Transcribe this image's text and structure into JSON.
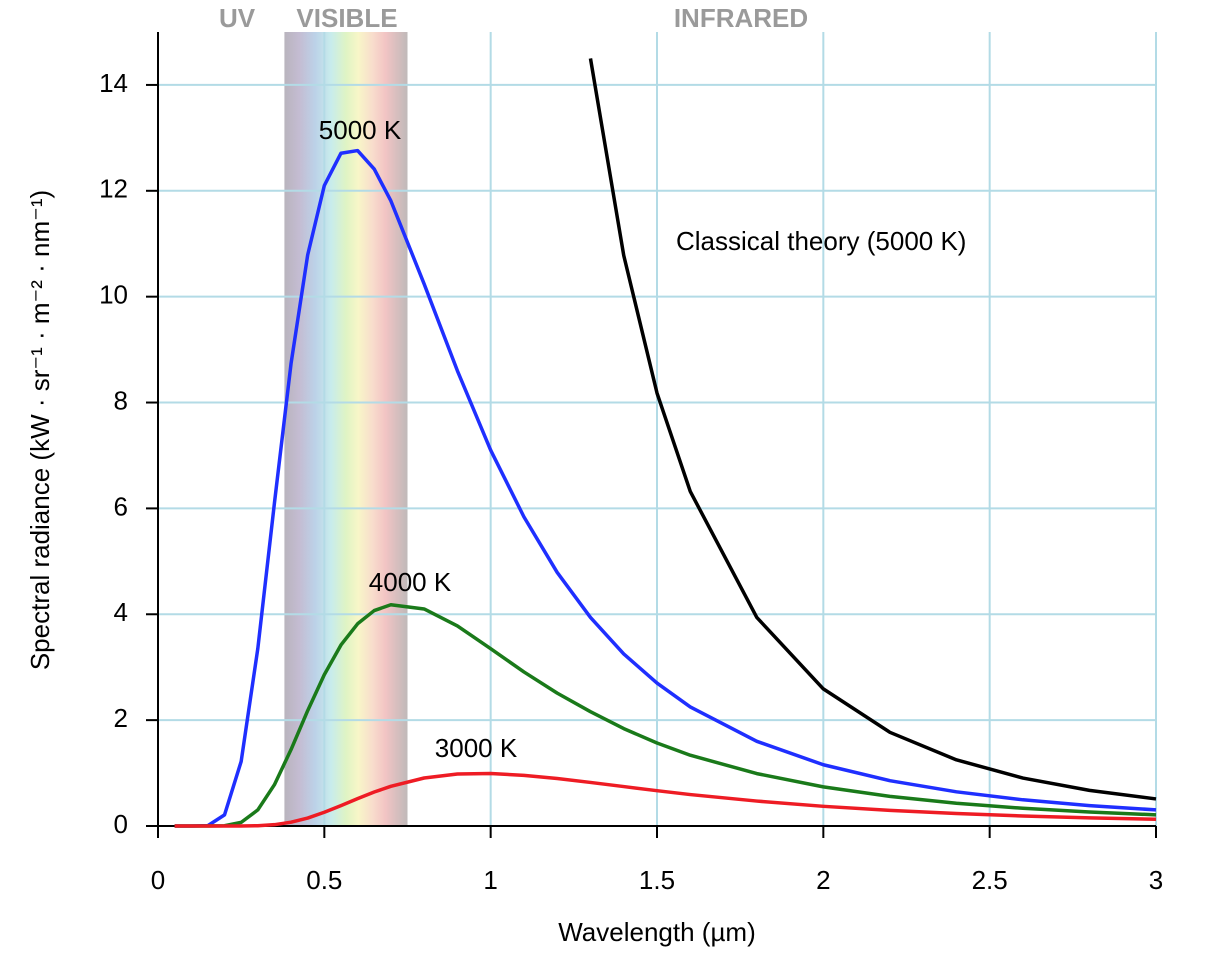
{
  "chart_data": {
    "type": "line",
    "xlabel": "Wavelength (µm)",
    "ylabel": "Spectral radiance (kW · sr⁻¹ · m⁻² · nm⁻¹)",
    "region_labels": [
      "UV",
      "VISIBLE",
      "INFRARED"
    ],
    "visible_band": [
      0.38,
      0.75
    ],
    "x": [
      0.05,
      0.1,
      0.15,
      0.2,
      0.25,
      0.3,
      0.35,
      0.4,
      0.45,
      0.5,
      0.55,
      0.6,
      0.65,
      0.7,
      0.8,
      0.9,
      1.0,
      1.1,
      1.2,
      1.3,
      1.4,
      1.5,
      1.6,
      1.8,
      2.0,
      2.2,
      2.4,
      2.6,
      2.8,
      3.0
    ],
    "series": [
      {
        "name": "5000 K",
        "color": "#1f2fff",
        "values": [
          0,
          0,
          0.0073,
          0.21,
          1.22,
          3.35,
          6.1,
          8.74,
          10.79,
          12.1,
          12.71,
          12.76,
          12.41,
          11.81,
          10.24,
          8.6,
          7.1,
          5.84,
          4.79,
          3.94,
          3.25,
          2.7,
          2.25,
          1.6,
          1.157,
          0.856,
          0.646,
          0.495,
          0.386,
          0.304
        ]
      },
      {
        "name": "4000 K",
        "color": "#1a7a1a",
        "values": [
          0,
          0,
          0,
          0.0058,
          0.069,
          0.304,
          0.78,
          1.445,
          2.18,
          2.86,
          3.42,
          3.82,
          4.07,
          4.18,
          4.1,
          3.78,
          3.35,
          2.91,
          2.51,
          2.16,
          1.84,
          1.568,
          1.337,
          0.99,
          0.739,
          0.56,
          0.43,
          0.335,
          0.265,
          0.211
        ]
      },
      {
        "name": "3000 K",
        "color": "#ee1c24",
        "values": [
          0,
          0,
          0,
          0,
          0.0006,
          0.0056,
          0.025,
          0.072,
          0.15,
          0.26,
          0.386,
          0.517,
          0.642,
          0.75,
          0.907,
          0.982,
          0.992,
          0.957,
          0.897,
          0.823,
          0.745,
          0.667,
          0.594,
          0.471,
          0.372,
          0.295,
          0.235,
          0.189,
          0.154,
          0.127
        ]
      },
      {
        "name": "Classical theory (5000 K)",
        "color": "#000000",
        "values": [
          null,
          null,
          null,
          null,
          null,
          null,
          null,
          null,
          null,
          null,
          null,
          null,
          null,
          null,
          null,
          null,
          null,
          null,
          null,
          14.5,
          10.78,
          8.18,
          6.32,
          3.94,
          2.59,
          1.77,
          1.25,
          0.906,
          0.673,
          0.511
        ]
      }
    ],
    "xlim": [
      0,
      3
    ],
    "ylim": [
      0,
      15
    ],
    "xticks": [
      0,
      0.5,
      1,
      1.5,
      2,
      2.5,
      3
    ],
    "yticks": [
      0,
      2,
      4,
      6,
      8,
      10,
      12,
      14
    ],
    "grid": true,
    "grid_color": "#b3dbe6"
  }
}
